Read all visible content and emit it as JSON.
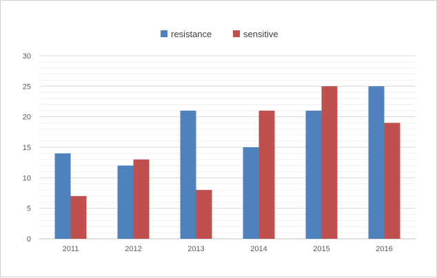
{
  "chart_data": {
    "type": "bar",
    "categories": [
      "2011",
      "2012",
      "2013",
      "2014",
      "2015",
      "2016"
    ],
    "series": [
      {
        "name": "resistance",
        "values": [
          14,
          12,
          21,
          15,
          21,
          25
        ],
        "color": "#4F81BD"
      },
      {
        "name": "sensitive",
        "values": [
          7,
          13,
          8,
          21,
          25,
          19
        ],
        "color": "#C0504D"
      }
    ],
    "ylim": [
      0,
      30
    ],
    "yticks": [
      0,
      5,
      10,
      15,
      20,
      25,
      30
    ],
    "grid": true,
    "legend": "top-center",
    "title": "",
    "xlabel": "",
    "ylabel": ""
  }
}
